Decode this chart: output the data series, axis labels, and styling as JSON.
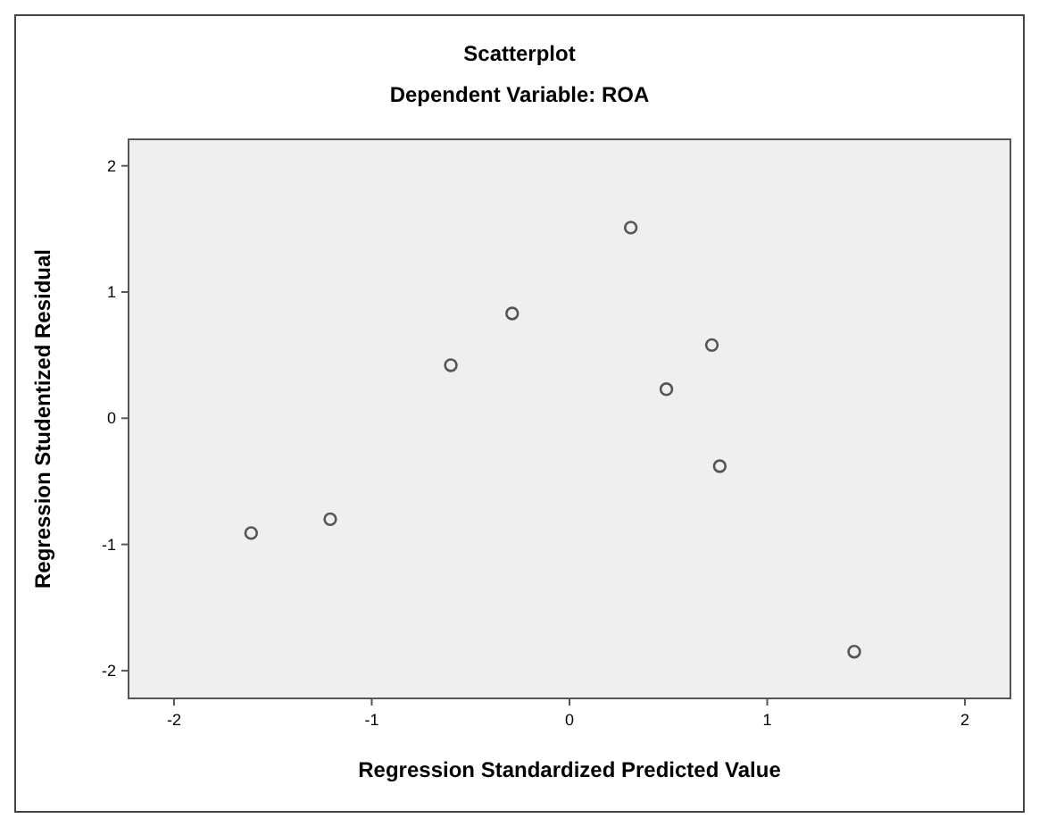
{
  "chart_data": {
    "type": "scatter",
    "title": "Scatterplot",
    "subtitle": "Dependent Variable: ROA",
    "xlabel": "Regression Standardized Predicted Value",
    "ylabel": "Regression Studentized Residual",
    "x": [
      -1.61,
      -1.21,
      -0.6,
      -0.29,
      0.31,
      0.49,
      0.72,
      0.76,
      1.44
    ],
    "series": [
      {
        "color": "#555555",
        "values": [
          -0.91,
          -0.8,
          0.42,
          0.83,
          1.51,
          0.23,
          0.58,
          -0.38,
          -1.85
        ]
      }
    ],
    "marker": "circle",
    "grid": false,
    "xlim": [
      -2.23,
      2.23
    ],
    "ylim": [
      -2.22,
      2.21
    ],
    "xticks": [
      -2,
      -1,
      0,
      1,
      2
    ],
    "yticks": [
      -2,
      -1,
      0,
      1,
      2
    ]
  }
}
